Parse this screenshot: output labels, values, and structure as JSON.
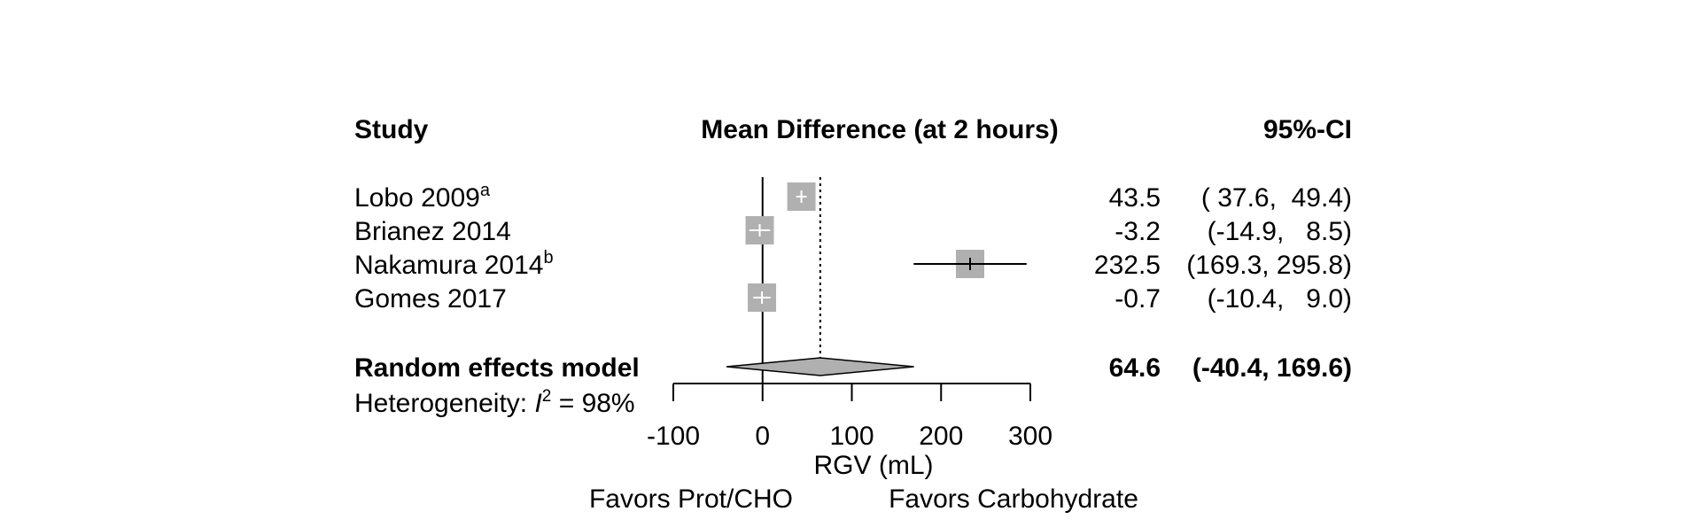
{
  "chart_data": {
    "type": "forest",
    "headers": {
      "study": "Study",
      "effect": "Mean Difference (at 2 hours)",
      "ci": "95%-CI"
    },
    "studies": [
      {
        "name": "Lobo 2009",
        "sup": "a",
        "md": 43.5,
        "lower": 37.6,
        "upper": 49.4,
        "md_text": "43.5",
        "ci_text": "( 37.6,  49.4)"
      },
      {
        "name": "Brianez 2014",
        "sup": "",
        "md": -3.2,
        "lower": -14.9,
        "upper": 8.5,
        "md_text": "-3.2",
        "ci_text": "(-14.9,   8.5)"
      },
      {
        "name": "Nakamura 2014",
        "sup": "b",
        "md": 232.5,
        "lower": 169.3,
        "upper": 295.8,
        "md_text": "232.5",
        "ci_text": "(169.3, 295.8)"
      },
      {
        "name": "Gomes 2017",
        "sup": "",
        "md": -0.7,
        "lower": -10.4,
        "upper": 9.0,
        "md_text": "-0.7",
        "ci_text": "(-10.4,   9.0)"
      }
    ],
    "pooled": {
      "name": "Random effects model",
      "md": 64.6,
      "lower": -40.4,
      "upper": 169.6,
      "md_text": "64.6",
      "ci_text": "(-40.4, 169.6)"
    },
    "heterogeneity": {
      "prefix": "Heterogeneity: ",
      "symbol": "I",
      "exponent": "2",
      "value": " = 98%"
    },
    "x_axis": {
      "label": "RGV (mL)",
      "ticks": [
        -100,
        0,
        100,
        200,
        300
      ],
      "range": [
        -100,
        300
      ]
    },
    "favors_left": "Favors Prot/CHO",
    "favors_right": "Favors Carbohydrate",
    "colors": {
      "square": "#b0b0b0",
      "diamond": "#b0b0b0",
      "line": "#000000"
    }
  }
}
